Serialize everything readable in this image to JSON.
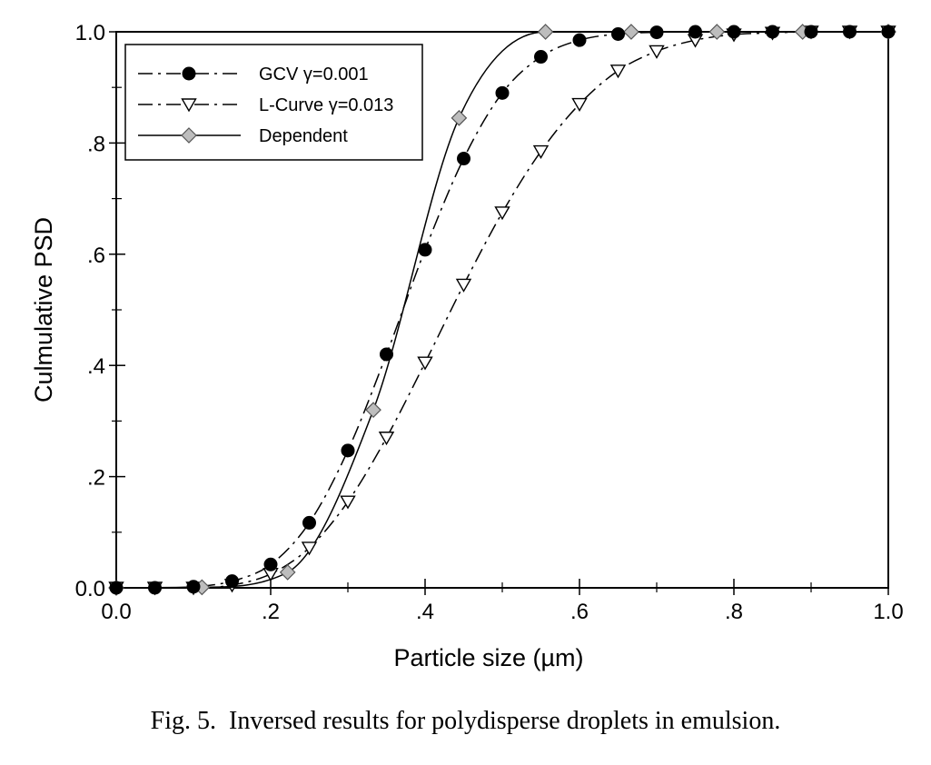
{
  "chart_data": {
    "type": "line",
    "xlabel": "Particle size (µm)",
    "ylabel": "Culmulative PSD",
    "xlim": [
      0,
      1
    ],
    "ylim": [
      0,
      1
    ],
    "x_ticks": [
      0,
      0.2,
      0.4,
      0.6,
      0.8,
      1.0
    ],
    "x_tick_labels": [
      "0.0",
      ".2",
      ".4",
      ".6",
      ".8",
      "1.0"
    ],
    "y_ticks": [
      0,
      0.2,
      0.4,
      0.6,
      0.8,
      1.0
    ],
    "y_tick_labels": [
      "0.0",
      ".2",
      ".4",
      ".6",
      ".8",
      "1.0"
    ],
    "grid": false,
    "legend_position": "top-left",
    "series": [
      {
        "name": "GCV γ=0.001",
        "marker": "filled-circle",
        "line_style": "dash-dot",
        "color": "#000000",
        "x": [
          0,
          0.05,
          0.1,
          0.15,
          0.2,
          0.25,
          0.3,
          0.35,
          0.4,
          0.45,
          0.5,
          0.55,
          0.6,
          0.65,
          0.7,
          0.75,
          0.8,
          0.85,
          0.9,
          0.95,
          1.0
        ],
        "y": [
          0,
          0,
          0.002,
          0.012,
          0.042,
          0.117,
          0.247,
          0.42,
          0.608,
          0.772,
          0.89,
          0.955,
          0.985,
          0.996,
          0.999,
          1.0,
          1.0,
          1.0,
          1.0,
          1.0,
          1.0
        ]
      },
      {
        "name": "L-Curve γ=0.013",
        "marker": "open-triangle-down",
        "line_style": "dash-dot",
        "color": "#000000",
        "x": [
          0,
          0.05,
          0.1,
          0.15,
          0.2,
          0.25,
          0.3,
          0.35,
          0.4,
          0.45,
          0.5,
          0.55,
          0.6,
          0.65,
          0.7,
          0.75,
          0.8,
          0.85,
          0.9,
          0.95,
          1.0
        ],
        "y": [
          0,
          0,
          0,
          0.005,
          0.025,
          0.072,
          0.155,
          0.27,
          0.405,
          0.545,
          0.675,
          0.785,
          0.87,
          0.93,
          0.965,
          0.985,
          0.995,
          0.998,
          1.0,
          1.0,
          1.0
        ]
      },
      {
        "name": "Dependent",
        "marker": "diamond",
        "line_style": "solid",
        "color": "#000000",
        "marker_fill": "#bdbdbd",
        "x": [
          0,
          0.111,
          0.222,
          0.333,
          0.444,
          0.556,
          0.667,
          0.778,
          0.889,
          1.0
        ],
        "y": [
          0,
          0.001,
          0.028,
          0.32,
          0.845,
          1.0,
          1.0,
          1.0,
          1.0,
          1.0
        ]
      }
    ]
  },
  "caption": "Fig. 5.  Inversed results for polydisperse droplets in emulsion."
}
